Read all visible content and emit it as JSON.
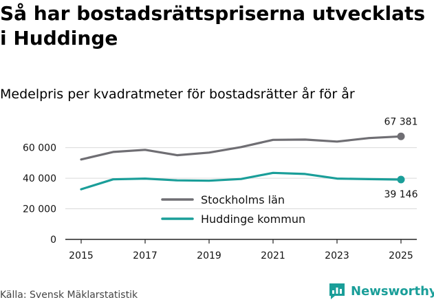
{
  "title": "Så har bostadsrättspriserna utvecklats i Huddinge",
  "subtitle": "Medelpris per kvadratmeter för bostadsrätter år för år",
  "source": "Källa: Svensk Mäklarstatistik",
  "brand": "Newsworthy",
  "chart_data": {
    "type": "line",
    "title": "Så har bostadsrättspriserna utvecklats i Huddinge",
    "subtitle": "Medelpris per kvadratmeter för bostadsrätter år för år",
    "x": [
      2015,
      2016,
      2017,
      2018,
      2019,
      2020,
      2021,
      2022,
      2023,
      2024,
      2025
    ],
    "xticks": [
      2015,
      2017,
      2019,
      2021,
      2023,
      2025
    ],
    "xtick_labels": [
      "2015",
      "2017",
      "2019",
      "2021",
      "2023",
      "2025"
    ],
    "yticks": [
      0,
      20000,
      40000,
      60000
    ],
    "ytick_labels": [
      "0",
      "20 000",
      "40 000",
      "60 000"
    ],
    "ylim": [
      0,
      72000
    ],
    "xlim": [
      2015,
      2025
    ],
    "grid": "horizontal",
    "legend_position": "bottom-center",
    "series": [
      {
        "name": "Stockholms län",
        "color": "#6f6e73",
        "values": [
          52300,
          57200,
          58600,
          55100,
          56800,
          60400,
          65100,
          65300,
          64000,
          66300,
          67381
        ],
        "end_label": "67 381",
        "end_label_position": "above"
      },
      {
        "name": "Huddinge kommun",
        "color": "#1a9e99",
        "values": [
          32800,
          39300,
          39800,
          38600,
          38400,
          39500,
          43500,
          42800,
          39800,
          39400,
          39146
        ],
        "end_label": "39 146",
        "end_label_position": "below"
      }
    ]
  }
}
